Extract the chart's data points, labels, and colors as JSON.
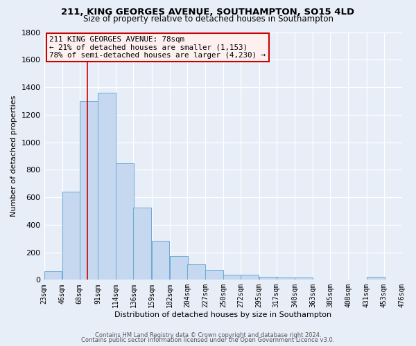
{
  "title1": "211, KING GEORGES AVENUE, SOUTHAMPTON, SO15 4LD",
  "title2": "Size of property relative to detached houses in Southampton",
  "xlabel": "Distribution of detached houses by size in Southampton",
  "ylabel": "Number of detached properties",
  "bar_color": "#c5d8f0",
  "bar_edge_color": "#6aaad4",
  "background_color": "#e8eef8",
  "grid_color": "white",
  "bins": [
    23,
    46,
    68,
    91,
    114,
    136,
    159,
    182,
    204,
    227,
    250,
    272,
    295,
    317,
    340,
    363,
    385,
    408,
    431,
    453,
    476
  ],
  "bin_labels": [
    "23sqm",
    "46sqm",
    "68sqm",
    "91sqm",
    "114sqm",
    "136sqm",
    "159sqm",
    "182sqm",
    "204sqm",
    "227sqm",
    "250sqm",
    "272sqm",
    "295sqm",
    "317sqm",
    "340sqm",
    "363sqm",
    "385sqm",
    "408sqm",
    "431sqm",
    "453sqm",
    "476sqm"
  ],
  "values": [
    60,
    640,
    1300,
    1360,
    845,
    525,
    285,
    175,
    110,
    70,
    35,
    35,
    20,
    15,
    15,
    0,
    0,
    0,
    20,
    0
  ],
  "ylim": [
    0,
    1800
  ],
  "yticks": [
    0,
    200,
    400,
    600,
    800,
    1000,
    1200,
    1400,
    1600,
    1800
  ],
  "property_size": 78,
  "vline_color": "#cc0000",
  "annotation_text": "211 KING GEORGES AVENUE: 78sqm\n← 21% of detached houses are smaller (1,153)\n78% of semi-detached houses are larger (4,230) →",
  "annotation_box_color": "#fff0f0",
  "annotation_edge_color": "#cc0000",
  "footer1": "Contains HM Land Registry data © Crown copyright and database right 2024.",
  "footer2": "Contains public sector information licensed under the Open Government Licence v3.0."
}
